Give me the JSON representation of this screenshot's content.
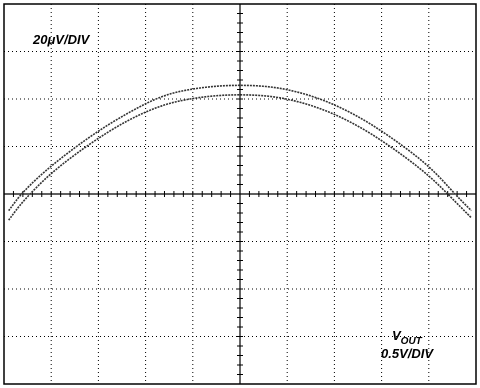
{
  "scope": {
    "top_label": "20μV/DIV",
    "bottom_label_main": "V",
    "bottom_label_sub": "OUT",
    "bottom_label_scale": "0.5V/DIV"
  },
  "chart_data": {
    "type": "line",
    "title": "",
    "xlabel": "VOUT 0.5V/DIV",
    "ylabel": "20μV/DIV",
    "xlim": [
      -2.5,
      2.5
    ],
    "ylim": [
      -80,
      80
    ],
    "grid": true,
    "divisions": {
      "x": 10,
      "y": 8
    },
    "series": [
      {
        "x": [
          -2.45,
          -2.3,
          -2.0,
          -1.6,
          -1.2,
          -0.8,
          -0.4,
          0.0,
          0.4,
          0.8,
          1.2,
          1.6,
          2.0,
          2.3,
          2.45
        ],
        "values": [
          -7,
          1,
          12,
          24,
          34,
          42,
          45,
          46,
          45,
          41,
          34,
          24,
          12,
          -1,
          -7
        ]
      },
      {
        "x": [
          -2.45,
          -2.3,
          -2.0,
          -1.6,
          -1.2,
          -0.8,
          -0.4,
          0.0,
          0.4,
          0.8,
          1.2,
          1.6,
          2.0,
          2.3,
          2.45
        ],
        "values": [
          -11,
          -3,
          9,
          21,
          31,
          38,
          41,
          42,
          41,
          37,
          30,
          20,
          8,
          -4,
          -10
        ]
      }
    ]
  }
}
